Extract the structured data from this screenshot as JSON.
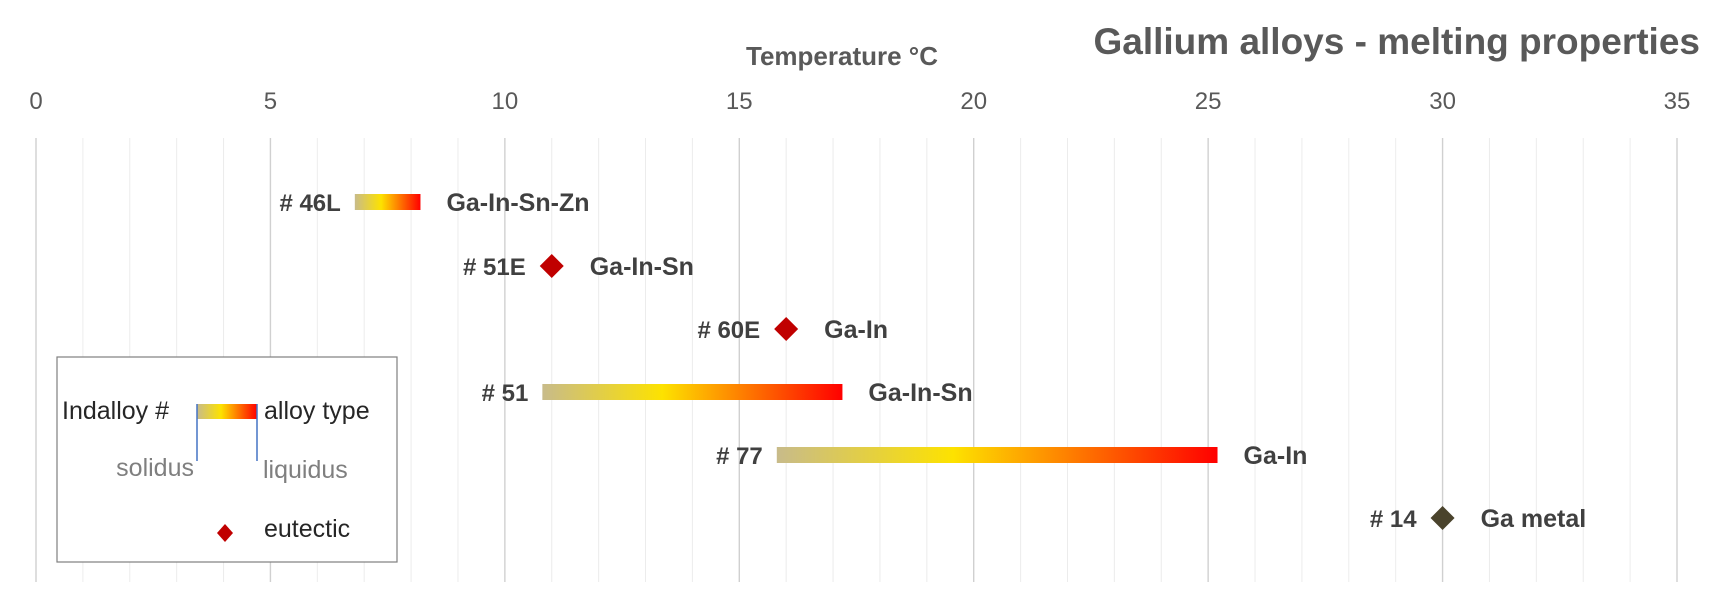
{
  "chart_data": {
    "type": "bar",
    "title": "Gallium alloys - melting properties",
    "xlabel": "Temperature  °C",
    "xlim": [
      0,
      35
    ],
    "x_ticks": [
      0,
      5,
      10,
      15,
      20,
      25,
      30,
      35
    ],
    "grid": true,
    "gradient_colors": [
      "#c8bb8a",
      "#fde200",
      "#ff0000"
    ],
    "eutectic_color": "#c00000",
    "metal_color": "#4a432c",
    "series": [
      {
        "id": "# 46L",
        "alloy": "Ga-In-Sn-Zn",
        "solidus": 6.8,
        "liquidus": 8.2,
        "kind": "range"
      },
      {
        "id": "# 51E",
        "alloy": "Ga-In-Sn",
        "value": 11,
        "kind": "eutectic"
      },
      {
        "id": "# 60E",
        "alloy": "Ga-In",
        "value": 16,
        "kind": "eutectic"
      },
      {
        "id": "# 51",
        "alloy": "Ga-In-Sn",
        "solidus": 10.8,
        "liquidus": 17.2,
        "kind": "range"
      },
      {
        "id": "# 77",
        "alloy": "Ga-In",
        "solidus": 15.8,
        "liquidus": 25.2,
        "kind": "range"
      },
      {
        "id": "# 14",
        "alloy": "Ga metal",
        "value": 30,
        "kind": "metal"
      }
    ],
    "legend": {
      "placement": "bottom-left",
      "id_label": "Indalloy #",
      "type_label": "alloy type",
      "solidus_label": "solidus",
      "liquidus_label": "liquidus",
      "eutectic_label": "eutectic"
    }
  }
}
